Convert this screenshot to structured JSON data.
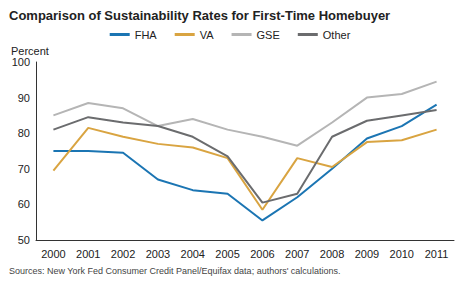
{
  "chart_data": {
    "type": "line",
    "title": "Comparison of Sustainability Rates for First-Time Homebuyer",
    "y_label": "Percent",
    "source": "Sources: New York Fed Consumer Credit Panel/Equifax data; authors' calculations.",
    "categories": [
      "2000",
      "2001",
      "2002",
      "2003",
      "2004",
      "2005",
      "2006",
      "2007",
      "2008",
      "2009",
      "2010",
      "2011"
    ],
    "series": [
      {
        "name": "FHA",
        "color": "#1b75b3",
        "values": [
          75,
          75,
          74.5,
          67,
          64,
          63,
          55.5,
          62,
          70,
          78.5,
          82,
          88
        ]
      },
      {
        "name": "VA",
        "color": "#d9a441",
        "values": [
          69.5,
          81.5,
          79,
          77,
          76,
          73,
          58.5,
          73,
          70.5,
          77.5,
          78,
          81
        ]
      },
      {
        "name": "GSE",
        "color": "#b5b5b5",
        "values": [
          85,
          88.5,
          87,
          82,
          84,
          81,
          79,
          76.5,
          83,
          90,
          91,
          94.5
        ]
      },
      {
        "name": "Other",
        "color": "#6b6c6e",
        "values": [
          81,
          84.5,
          83,
          82,
          79,
          73.5,
          60.5,
          63,
          79,
          83.5,
          85,
          86.5
        ]
      }
    ],
    "ylim": [
      50,
      100
    ],
    "yticks": [
      50,
      60,
      70,
      80,
      90,
      100
    ],
    "grid": false,
    "legend": "top"
  }
}
